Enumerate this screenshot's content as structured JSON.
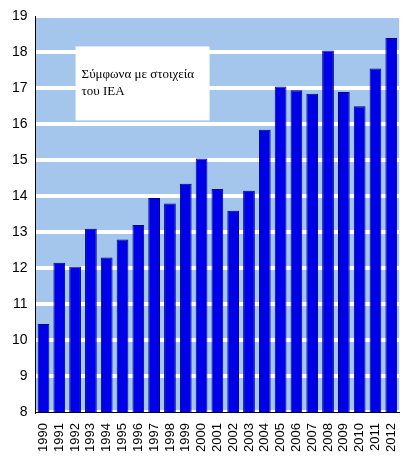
{
  "chart_data": {
    "type": "bar",
    "annotation": "Σύμφωνα με στοιχεία του IEA",
    "categories": [
      "1990",
      "1991",
      "1992",
      "1993",
      "1994",
      "1995",
      "1996",
      "1997",
      "1998",
      "1999",
      "2000",
      "2001",
      "2002",
      "2003",
      "2004",
      "2005",
      "2006",
      "2007",
      "2008",
      "2009",
      "2010",
      "2011",
      "2012"
    ],
    "values": [
      10.45,
      12.15,
      12.05,
      13.1,
      12.3,
      12.8,
      13.2,
      13.95,
      13.8,
      14.35,
      15.05,
      14.2,
      13.6,
      14.15,
      15.85,
      17.05,
      16.95,
      16.85,
      18.05,
      16.9,
      16.5,
      17.55,
      18.4
    ],
    "color": "#0000e8",
    "ylim": [
      8,
      19
    ],
    "yticks": [
      8,
      9,
      10,
      11,
      12,
      13,
      14,
      15,
      16,
      17,
      18,
      19
    ],
    "grid": true
  }
}
